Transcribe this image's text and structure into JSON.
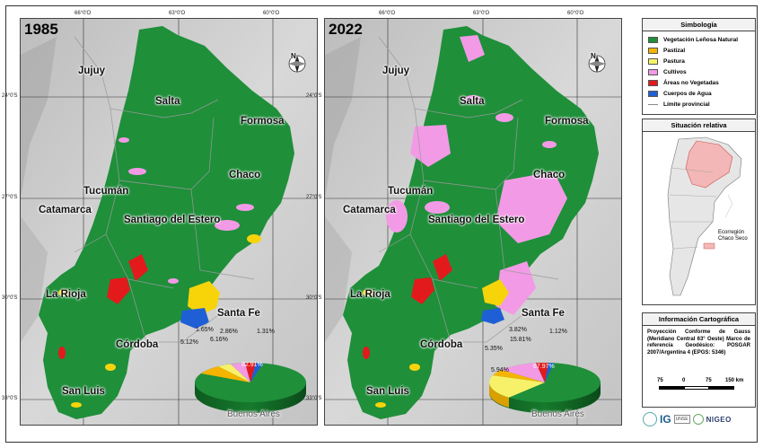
{
  "maps": [
    {
      "year": "1985",
      "provinces": [
        "Jujuy",
        "Salta",
        "Formosa",
        "Chaco",
        "Tucumán",
        "Catamarca",
        "Santiago del Estero",
        "La Rioja",
        "Santa Fe",
        "Córdoba",
        "San Luis",
        "Buenos Aires"
      ],
      "pie_labels": [
        "1.65%",
        "2.86%",
        "1.31%",
        "5.12%",
        "6.16%",
        "82.91%"
      ]
    },
    {
      "year": "2022",
      "provinces": [
        "Jujuy",
        "Salta",
        "Formosa",
        "Chaco",
        "Tucumán",
        "Catamarca",
        "Santiago del Estero",
        "La Rioja",
        "Santa Fe",
        "Córdoba",
        "San Luis",
        "Buenos Aires"
      ],
      "pie_labels": [
        "3.82%",
        "1.12%",
        "5.35%",
        "15.81%",
        "5.94%",
        "67.97%"
      ]
    }
  ],
  "coords": {
    "top": [
      "66°0'O",
      "63°0'O",
      "60°0'O"
    ],
    "left": [
      "24°0'S",
      "27°0'S",
      "30°0'S",
      "33°0'S"
    ]
  },
  "north_label": "N",
  "legend": {
    "title": "Simbología",
    "items": [
      {
        "label": "Vegetación Leñosa Natural",
        "color": "#1f8f3a"
      },
      {
        "label": "Pastizal",
        "color": "#f5b400"
      },
      {
        "label": "Pastura",
        "color": "#f7f16a"
      },
      {
        "label": "Cultivos",
        "color": "#f29ae6"
      },
      {
        "label": "Áreas no Vegetadas",
        "color": "#e31a1c"
      },
      {
        "label": "Cuerpos de Agua",
        "color": "#1f5fd6"
      }
    ],
    "line_item": "Límite provincial"
  },
  "situacion": {
    "title": "Situación relativa",
    "legend_label": "Ecorregión Chaco Seco",
    "legend_color": "#f3b7b7"
  },
  "info": {
    "title": "Información Cartográfica",
    "text": "Proyección Conforme de Gauss (Meridiano Central 63° Oeste) Marco de referencia Geodésico: POSGAR 2007/Argentina 4 (EPGS: 5346)"
  },
  "scale": {
    "labels": [
      "75",
      "0",
      "75",
      "150 km"
    ]
  },
  "logos": [
    "IG",
    "UNSE",
    "NIGEO"
  ]
}
